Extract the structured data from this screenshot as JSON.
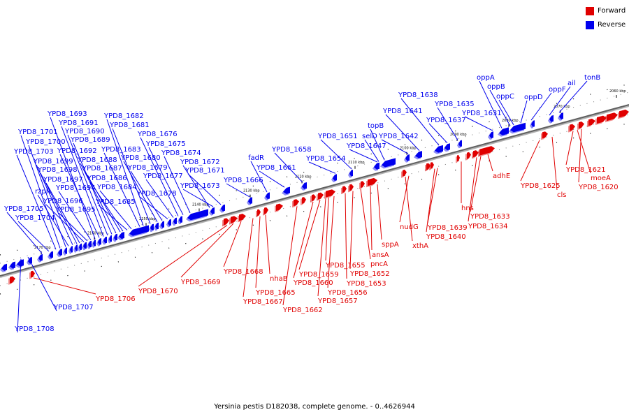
{
  "caption": "Yersinia pestis D182038, complete genome. - 0..4626944",
  "legend": {
    "forward_label": "Forward",
    "reverse_label": "Reverse",
    "forward_color": "#e00000",
    "reverse_color": "#0000ee"
  },
  "colors": {
    "forward": "#e00000",
    "reverse": "#0000ee",
    "backbone": "#606060",
    "tick": "#000000"
  },
  "ticks": [
    "2060 kbp",
    "2070 kbp",
    "2080 kbp",
    "2090 kbp",
    "2100 kbp",
    "2110 kbp",
    "2120 kbp",
    "2130 kbp",
    "2140 kbp",
    "2150 kbp",
    "2160 kbp",
    "2170 kbp"
  ],
  "reverse_labels": [
    "tonB",
    "ail",
    "oppF",
    "oppD",
    "oppC",
    "oppB",
    "oppA",
    "YPD8_1631",
    "YPD8_1635",
    "YPD8_1637",
    "YPD8_1638",
    "YPD8_1641",
    "YPD8_1642",
    "topB",
    "selD",
    "YPD8_1647",
    "YPD8_1651",
    "YPD8_1654",
    "YPD8_1658",
    "YPD8_1661",
    "fadR",
    "YPD8_1666",
    "YPD8_1671",
    "YPD8_1672",
    "YPD8_1673",
    "YPD8_1674",
    "YPD8_1675",
    "YPD8_1676",
    "YPD8_1677",
    "YPD8_1678",
    "YPD8_1679",
    "YPD8_1680",
    "YPD8_1681",
    "YPD8_1682",
    "YPD8_1683",
    "YPD8_1684",
    "YPD8_1685",
    "YPD8_1686",
    "YPD8_1687",
    "YPD8_1688",
    "YPD8_1689",
    "YPD8_1690",
    "YPD8_1691",
    "YPD8_1692",
    "YPD8_1693",
    "YPD8_1694",
    "YPD8_1695",
    "YPD8_1696",
    "YPD8_1697",
    "YPD8_1698",
    "YPD8_1699",
    "rzpR",
    "YPD8_1700",
    "YPD8_1701",
    "YPD8_1703",
    "YPD8_1704",
    "YPD8_1705",
    "YPD8_1707",
    "YPD8_1708"
  ],
  "forward_labels": [
    "YPD8_1620",
    "moeA",
    "YPD8_1621",
    "cls",
    "YPD8_1625",
    "adhE",
    "YPD8_1633",
    "YPD8_1634",
    "hns",
    "YPD8_1639",
    "YPD8_1640",
    "nudG",
    "xthA",
    "sppA",
    "ansA",
    "pncA",
    "YPD8_1652",
    "YPD8_1653",
    "YPD8_1655",
    "YPD8_1656",
    "YPD8_1657",
    "YPD8_1659",
    "YPD8_1660",
    "YPD8_1662",
    "nhaB",
    "YPD8_1665",
    "YPD8_1667",
    "YPD8_1668",
    "YPD8_1669",
    "YPD8_1670",
    "YPD8_1706"
  ]
}
